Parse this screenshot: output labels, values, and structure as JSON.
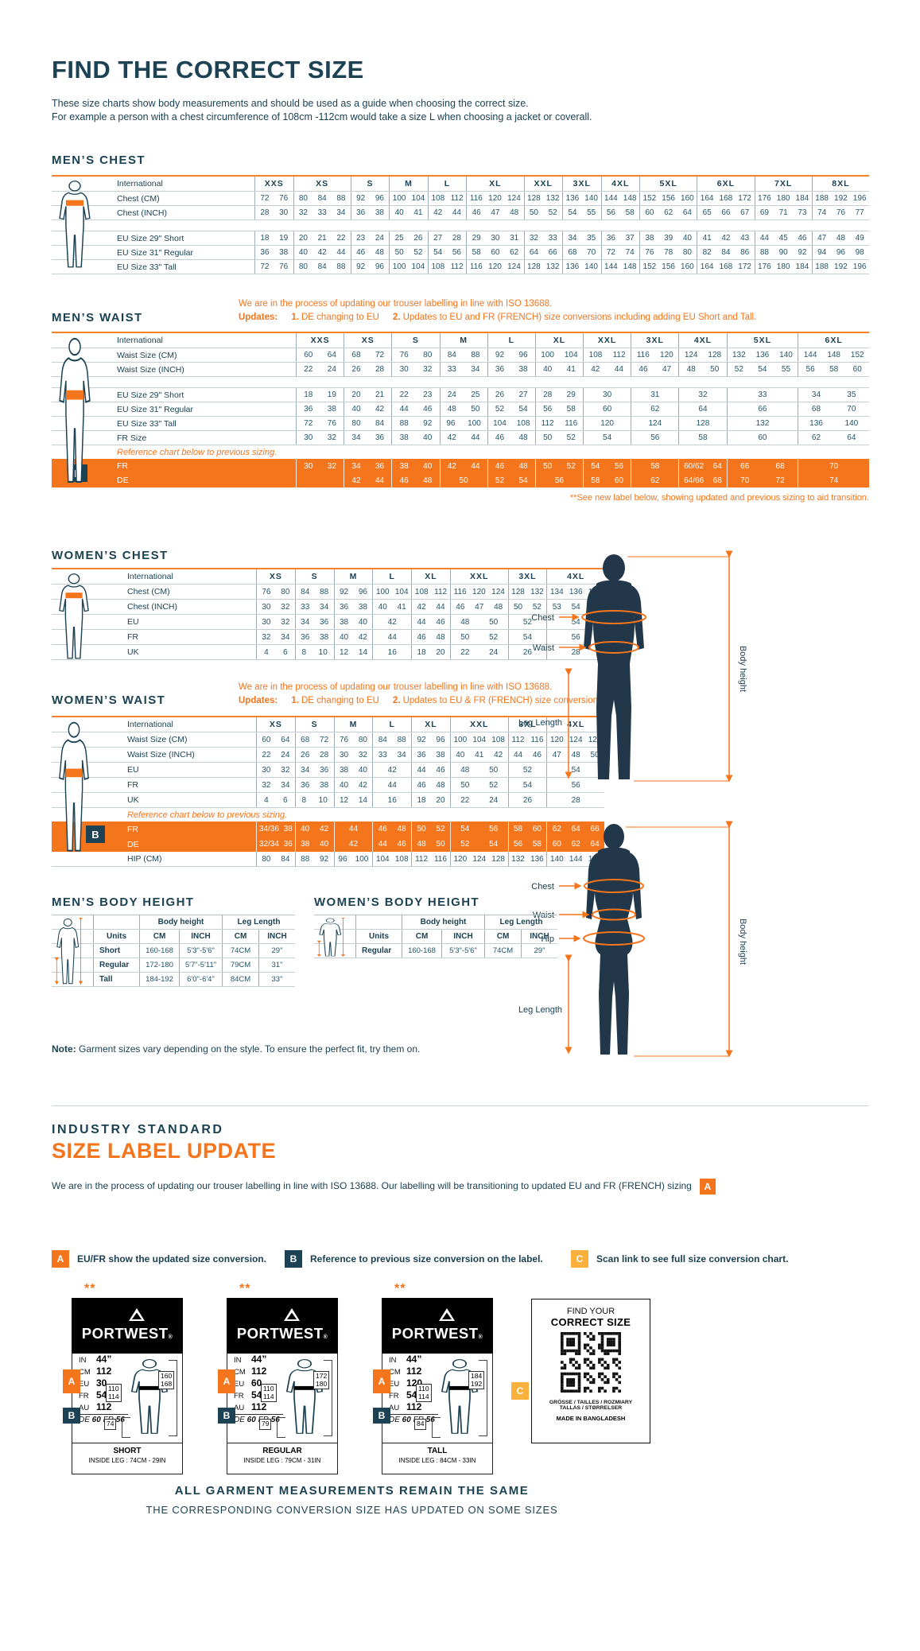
{
  "page": {
    "title": "FIND THE CORRECT SIZE",
    "subtitle1": "These size charts show body measurements and should be used as a guide when choosing the correct size.",
    "subtitle2": "For example a person with a chest circumference of 108cm -112cm would take a size L when choosing a jacket or coverall.",
    "note_bold": "Note:",
    "note_text": " Garment sizes vary depending on the style. To ensure the perfect fit, try them on."
  },
  "colors": {
    "teal": "#1c4254",
    "orange": "#f5751d",
    "amber": "#f9b03c"
  },
  "tables": {
    "mens_chest": {
      "title": "MEN’S CHEST",
      "label_header": "International",
      "columns": [
        "XXS",
        "XS",
        "S",
        "M",
        "L",
        "XL",
        "XXL",
        "3XL",
        "4XL",
        "5XL",
        "6XL",
        "7XL",
        "8XL"
      ],
      "weights": [
        2,
        3,
        2,
        2,
        2,
        3,
        2,
        2,
        2,
        3,
        3,
        3,
        3
      ],
      "rows": [
        {
          "label": "Chest (CM)",
          "cells": [
            "72 76",
            "80 84 88",
            "92 96",
            "100 104",
            "108 112",
            "116 120 124",
            "128 132",
            "136 140",
            "144 148",
            "152 156 160",
            "164 168 172",
            "176 180 184",
            "188 192 196"
          ]
        },
        {
          "label": "Chest (INCH)",
          "cells": [
            "28 30",
            "32 33 34",
            "36 38",
            "40 41",
            "42 44",
            "46 47 48",
            "50 52",
            "54 55",
            "56 58",
            "60 62 64",
            "65 66 67",
            "69 71 73",
            "74 76 77"
          ]
        },
        {
          "gap": true
        },
        {
          "label": "EU Size 29\" Short",
          "cells": [
            "18 19",
            "20 21 22",
            "23 24",
            "25 26",
            "27 28",
            "29 30 31",
            "32 33",
            "34 35",
            "36 37",
            "38 39 40",
            "41 42 43",
            "44 45 46",
            "47 48 49"
          ]
        },
        {
          "label": "EU Size 31\" Regular",
          "cells": [
            "36 38",
            "40 42 44",
            "46 48",
            "50 52",
            "54 56",
            "58 60 62",
            "64 66",
            "68 70",
            "72 74",
            "76 78 80",
            "82 84 86",
            "88 90 92",
            "94 96 98"
          ]
        },
        {
          "label": "EU Size 33\" Tall",
          "cells": [
            "72 76",
            "80 84 88",
            "92 96",
            "100 104",
            "108 112",
            "116 120 124",
            "128 132",
            "136 140",
            "144 148",
            "152 156 160",
            "164 168 172",
            "176 180 184",
            "188 192 196"
          ]
        }
      ]
    },
    "mens_waist": {
      "title": "MEN’S WAIST",
      "note_line1": "We are in the process of updating our trouser labelling in line with ISO 13688.",
      "updates_label": "Updates:",
      "update1": "1.",
      "update1_text": "DE changing to EU",
      "update2": "2.",
      "update2_text": "Updates to EU and FR (FRENCH) size conversions including adding EU Short and Tall.",
      "label_header": "International",
      "columns": [
        "XXS",
        "XS",
        "S",
        "M",
        "L",
        "XL",
        "XXL",
        "3XL",
        "4XL",
        "5XL",
        "6XL"
      ],
      "weights": [
        2,
        2,
        2,
        2,
        2,
        2,
        2,
        2,
        2,
        3,
        3
      ],
      "rows": [
        {
          "label": "Waist Size (CM)",
          "cells": [
            "60 64",
            "68 72",
            "76 80",
            "84 88",
            "92 96",
            "100 104",
            "108 112",
            "116 120",
            "124 128",
            "132 136 140",
            "144 148 152"
          ]
        },
        {
          "label": "Waist Size (INCH)",
          "cells": [
            "22 24",
            "26 28",
            "30 32",
            "33 34",
            "36 38",
            "40 41",
            "42 44",
            "46 47",
            "48 50",
            "52 54 55",
            "56 58 60"
          ]
        },
        {
          "gap": true
        },
        {
          "label": "EU Size 29\" Short",
          "cells": [
            "18 19",
            "20 21",
            "22 23",
            "24 25",
            "26 27",
            "28 29",
            "30",
            "31",
            "32",
            "33",
            "34 35"
          ]
        },
        {
          "label": "EU Size 31\" Regular",
          "cells": [
            "36 38",
            "40 42",
            "44 46",
            "48 50",
            "52 54",
            "56 58",
            "60",
            "62",
            "64",
            "66",
            "68 70"
          ]
        },
        {
          "label": "EU Size 33\" Tall",
          "cells": [
            "72 76",
            "80 84",
            "88 92",
            "96 100",
            "104 108",
            "112 116",
            "120",
            "124",
            "128",
            "132",
            "136 140"
          ]
        },
        {
          "label": "FR Size",
          "cells": [
            "30 32",
            "34 36",
            "38 40",
            "42 44",
            "46 48",
            "50 52",
            "54",
            "56",
            "58",
            "60",
            "62 64"
          ]
        },
        {
          "note": "Reference chart below to previous sizing."
        },
        {
          "label": "FR",
          "orange": true,
          "cells": [
            "30 32",
            "34 36",
            "38 40",
            "42 44",
            "46 48",
            "50 52",
            "54 56",
            "58",
            "60/62 64",
            "66 68",
            "70"
          ]
        },
        {
          "label": "DE",
          "orange": true,
          "cells": [
            "",
            "42 44",
            "46 48",
            "50",
            "52 54",
            "56",
            "58 60",
            "62",
            "64/66 68",
            "70 72",
            "74"
          ]
        }
      ],
      "badge": "B",
      "footnote": "**See new label below, showing updated and previous sizing to aid transition."
    },
    "womens_chest": {
      "title": "WOMEN’S CHEST",
      "label_header": "International",
      "columns": [
        "XS",
        "S",
        "M",
        "L",
        "XL",
        "XXL",
        "3XL",
        "4XL"
      ],
      "weights": [
        2,
        2,
        2,
        2,
        2,
        3,
        2,
        3
      ],
      "rows": [
        {
          "label": "Chest (CM)",
          "cells": [
            "76 80",
            "84 88",
            "92 96",
            "100 104",
            "108 112",
            "116 120 124",
            "128 132",
            "134 136 144"
          ]
        },
        {
          "label": "Chest (INCH)",
          "cells": [
            "30 32",
            "33 34",
            "36 38",
            "40 41",
            "42 44",
            "46 47 48",
            "50 52",
            "53 54 56"
          ]
        },
        {
          "label": "EU",
          "cells": [
            "30 32",
            "34 36",
            "38 40",
            "42",
            "44 46",
            "48 50",
            "52",
            "54"
          ]
        },
        {
          "label": "FR",
          "cells": [
            "32 34",
            "36 38",
            "40 42",
            "44",
            "46 48",
            "50 52",
            "54",
            "56"
          ]
        },
        {
          "label": "UK",
          "cells": [
            "4 6",
            "8 10",
            "12 14",
            "16",
            "18 20",
            "22 24",
            "26",
            "28"
          ]
        }
      ]
    },
    "womens_waist": {
      "title": "WOMEN’S WAIST",
      "note_line1": "We are in the process of updating our trouser labelling in line with ISO 13688.",
      "updates_label": "Updates:",
      "update1": "1.",
      "update1_text": "DE changing to EU",
      "update2": "2.",
      "update2_text": "Updates to EU & FR (FRENCH) size conversions.",
      "label_header": "International",
      "columns": [
        "XS",
        "S",
        "M",
        "L",
        "XL",
        "XXL",
        "3XL",
        "4XL"
      ],
      "weights": [
        2,
        2,
        2,
        2,
        2,
        3,
        2,
        3
      ],
      "rows": [
        {
          "label": "Waist Size (CM)",
          "cells": [
            "60 64",
            "68 72",
            "76 80",
            "84 88",
            "92 96",
            "100 104 108",
            "112 116",
            "120 124 128"
          ]
        },
        {
          "label": "Waist Size (INCH)",
          "cells": [
            "22 24",
            "26 28",
            "30 32",
            "33 34",
            "36 38",
            "40 41 42",
            "44 46",
            "47 48 50"
          ]
        },
        {
          "label": "EU",
          "cells": [
            "30 32",
            "34 36",
            "38 40",
            "42",
            "44 46",
            "48 50",
            "52",
            "54"
          ]
        },
        {
          "label": "FR",
          "cells": [
            "32 34",
            "36 38",
            "40 42",
            "44",
            "46 48",
            "50 52",
            "54",
            "56"
          ]
        },
        {
          "label": "UK",
          "cells": [
            "4 6",
            "8 10",
            "12 14",
            "16",
            "18 20",
            "22 24",
            "26",
            "28"
          ]
        },
        {
          "note": "Reference chart below to previous sizing."
        },
        {
          "label": "FR",
          "orange": true,
          "cells": [
            "34/36 38",
            "40 42",
            "44",
            "46 48",
            "50 52",
            "54 56",
            "58 60",
            "62 64 66"
          ]
        },
        {
          "label": "DE",
          "orange": true,
          "cells": [
            "32/34 36",
            "38 40",
            "42",
            "44 46",
            "48 50",
            "52 54",
            "56 58",
            "60 62 64"
          ]
        },
        {
          "label": "HIP (CM)",
          "cells": [
            "80 84",
            "88 92",
            "96 100",
            "104 108",
            "112 116",
            "120 124 128",
            "132 136",
            "140 144 148"
          ]
        }
      ],
      "badge": "B"
    }
  },
  "body_height": {
    "mens": {
      "title": "MEN’S BODY HEIGHT",
      "group1": "Body height",
      "group2": "Leg Length",
      "cols": [
        "Units",
        "CM",
        "INCH",
        "CM",
        "INCH"
      ],
      "rows": [
        [
          "Short",
          "160-168",
          "5'3\"-5'6\"",
          "74CM",
          "29\""
        ],
        [
          "Regular",
          "172-180",
          "5'7\"-5'11\"",
          "79CM",
          "31\""
        ],
        [
          "Tall",
          "184-192",
          "6'0\"-6'4\"",
          "84CM",
          "33\""
        ]
      ]
    },
    "womens": {
      "title": "WOMEN’S BODY HEIGHT",
      "group1": "Body height",
      "group2": "Leg Length",
      "cols": [
        "Units",
        "CM",
        "INCH",
        "CM",
        "INCH"
      ],
      "rows": [
        [
          "Regular",
          "160-168",
          "5'3\"-5'6\"",
          "74CM",
          "29\""
        ]
      ]
    }
  },
  "diagrams": {
    "man": {
      "chest": "Chest",
      "waist": "Waist",
      "leg": "Leg Length",
      "height": "Body height"
    },
    "woman": {
      "chest": "Chest",
      "waist": "Waist",
      "hip": "Hip",
      "leg": "Leg Length",
      "height": "Body height"
    }
  },
  "update_section": {
    "heading1": "INDUSTRY STANDARD",
    "heading2": "SIZE LABEL UPDATE",
    "intro": "We are in the process of updating our trouser labelling in line with ISO 13688. Our labelling will be transitioning to updated EU and FR (FRENCH) sizing",
    "intro_badge": "A",
    "legend": [
      {
        "badge": "A",
        "text": "EU/FR show the updated size conversion."
      },
      {
        "badge": "B",
        "text": "Reference to previous size conversion on the label."
      },
      {
        "badge": "C",
        "text": "Scan link to see full size conversion chart."
      }
    ],
    "cards": [
      {
        "stars": "**",
        "brand": "PORTWEST",
        "reg": "®",
        "rows": [
          {
            "l": "IN",
            "v": "44”"
          },
          {
            "l": "CM",
            "v": "112"
          },
          {
            "l": "EU",
            "v": "30"
          },
          {
            "l": "FR",
            "v": "54"
          },
          {
            "l": "AU",
            "v": "112"
          }
        ],
        "prev_label": "DE",
        "prev_v1": "60",
        "prev_label2": "FR",
        "prev_v2": "56",
        "waist_box": "110 114",
        "height_box": "160 168",
        "leg_box": "74",
        "fit": "SHORT",
        "inside_leg": "INSIDE LEG : 74CM - 29IN"
      },
      {
        "stars": "**",
        "brand": "PORTWEST",
        "reg": "®",
        "rows": [
          {
            "l": "IN",
            "v": "44”"
          },
          {
            "l": "CM",
            "v": "112"
          },
          {
            "l": "EU",
            "v": "60"
          },
          {
            "l": "FR",
            "v": "54"
          },
          {
            "l": "AU",
            "v": "112"
          }
        ],
        "prev_label": "DE",
        "prev_v1": "60",
        "prev_label2": "FR",
        "prev_v2": "56",
        "waist_box": "110 114",
        "height_box": "172 180",
        "leg_box": "79",
        "fit": "REGULAR",
        "inside_leg": "INSIDE LEG : 79CM - 31IN"
      },
      {
        "stars": "**",
        "brand": "PORTWEST",
        "reg": "®",
        "rows": [
          {
            "l": "IN",
            "v": "44”"
          },
          {
            "l": "CM",
            "v": "112"
          },
          {
            "l": "EU",
            "v": "120"
          },
          {
            "l": "FR",
            "v": "54"
          },
          {
            "l": "AU",
            "v": "112"
          }
        ],
        "prev_label": "DE",
        "prev_v1": "60",
        "prev_label2": "FR",
        "prev_v2": "56",
        "waist_box": "110 114",
        "height_box": "184 192",
        "leg_box": "84",
        "fit": "TALL",
        "inside_leg": "INSIDE LEG : 84CM - 33IN"
      }
    ],
    "qr_card": {
      "line1": "FIND YOUR",
      "line2": "CORRECT SIZE",
      "badge": "C",
      "langs1": "GRÖSSE / TAILLES / ROZMIARY",
      "langs2": "TALLAS / STØRRELSER",
      "made": "MADE IN BANGLADESH"
    },
    "footer1": "ALL GARMENT MEASUREMENTS REMAIN THE SAME",
    "footer2": "THE CORRESPONDING CONVERSION SIZE HAS UPDATED ON SOME SIZES"
  }
}
